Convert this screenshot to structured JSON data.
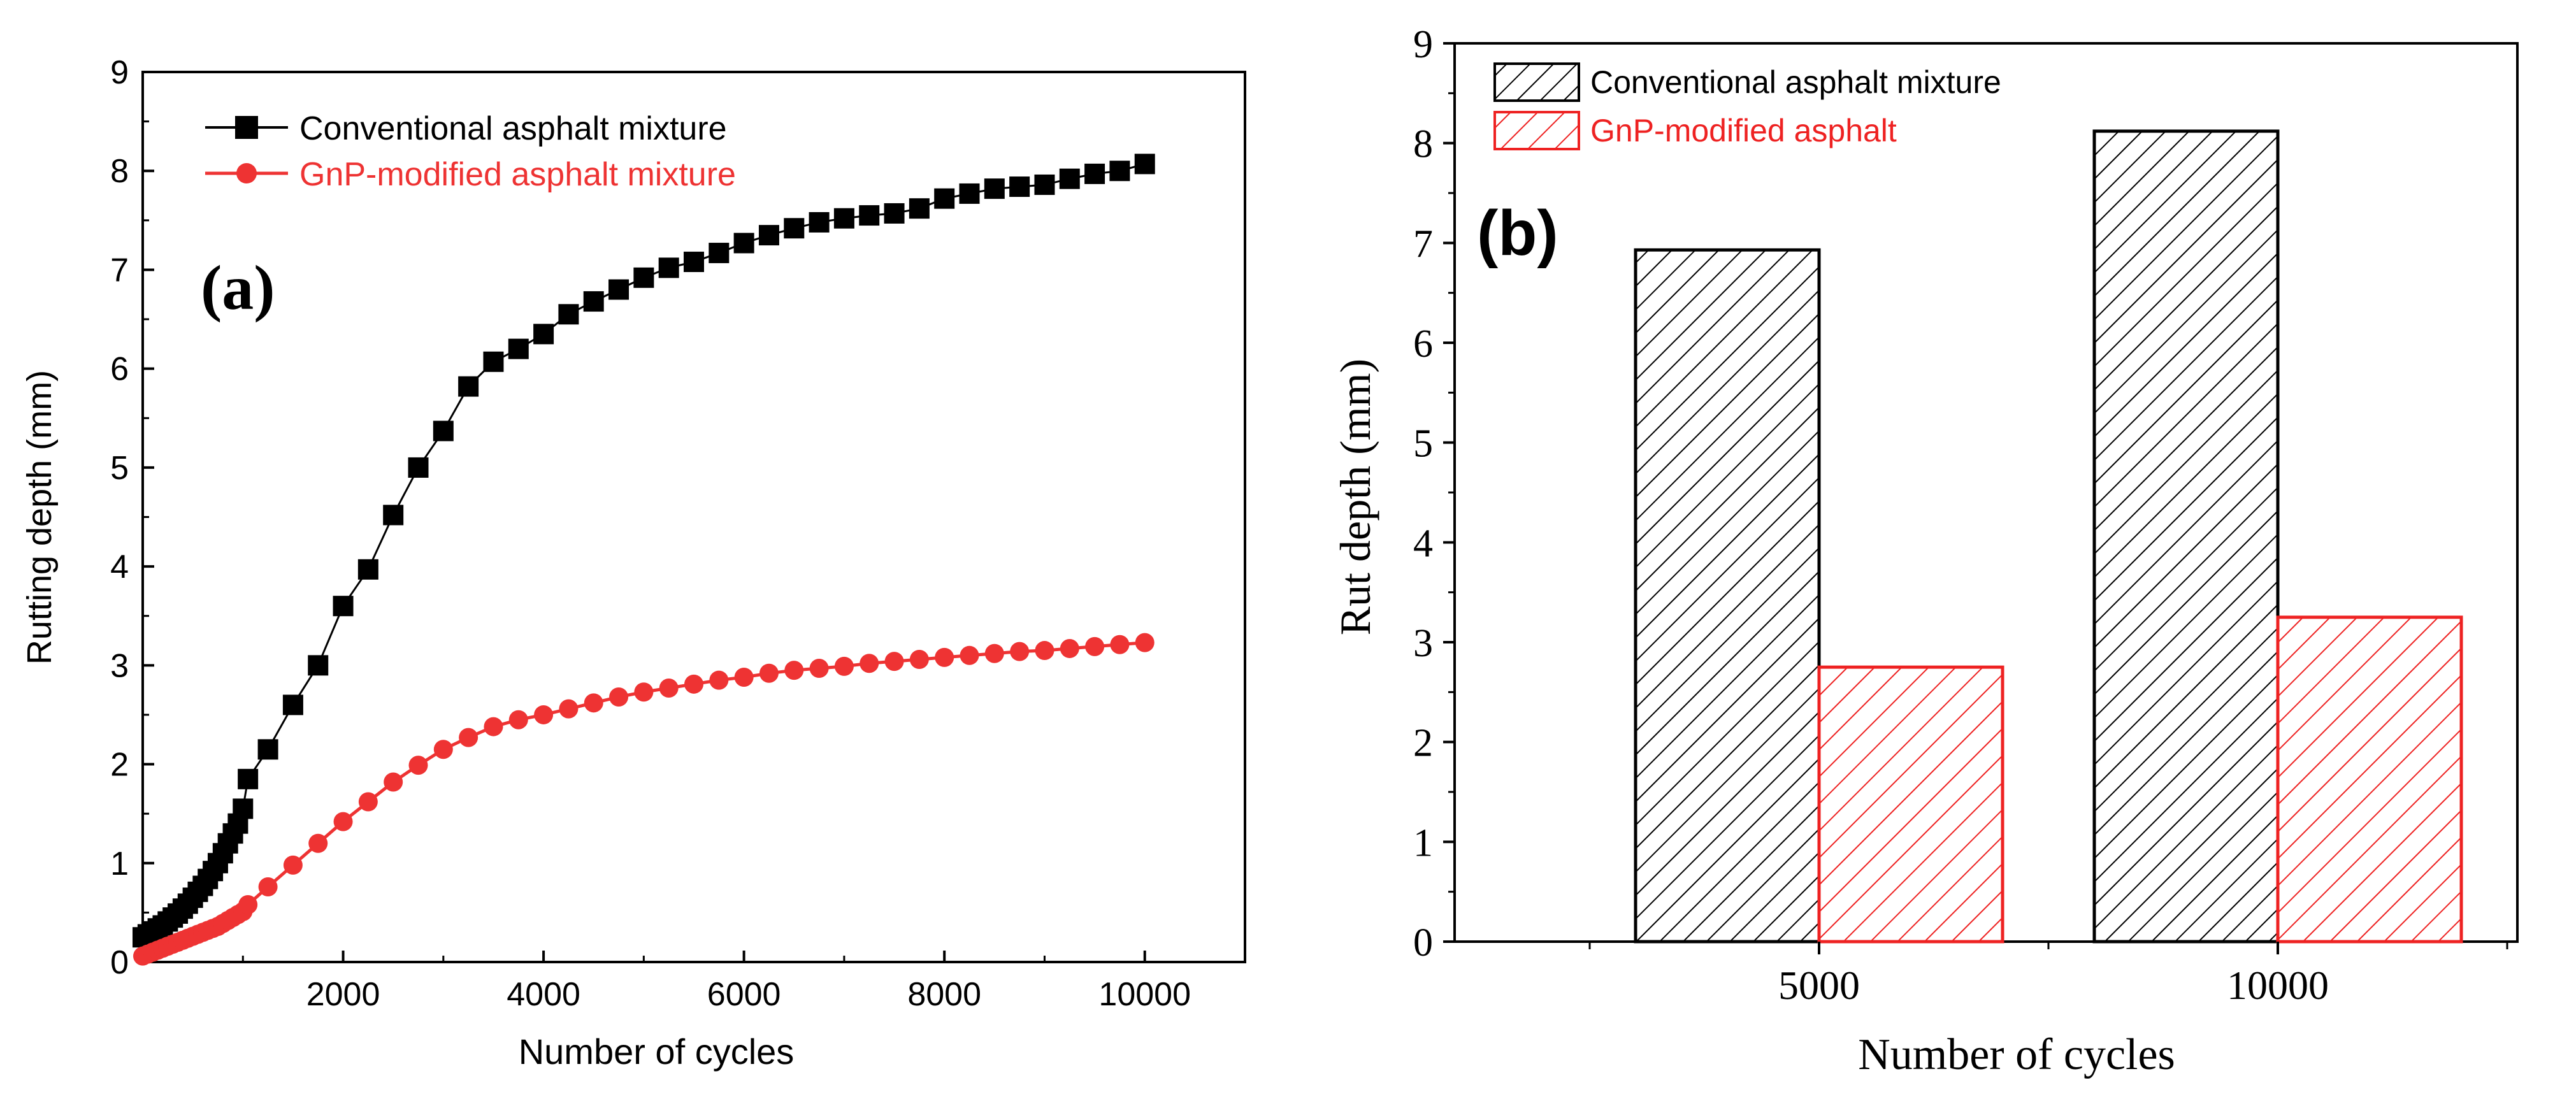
{
  "chart_data": [
    {
      "type": "line",
      "panel_label": "(a)",
      "xlabel": "Number of cycles",
      "ylabel": "Rutting depth (mm)",
      "xlim": [
        0,
        11000
      ],
      "ylim": [
        0,
        9
      ],
      "xticks": [
        2000,
        4000,
        6000,
        8000,
        10000
      ],
      "xtick_labels": [
        "2000",
        "4000",
        "6000",
        "8000",
        "10000"
      ],
      "yticks": [
        0,
        1,
        2,
        3,
        4,
        5,
        6,
        7,
        8,
        9
      ],
      "ytick_labels": [
        "0",
        "1",
        "2",
        "3",
        "4",
        "5",
        "6",
        "7",
        "8",
        "9"
      ],
      "legend_position": "top-left",
      "grid": false,
      "series": [
        {
          "name": "Conventional asphalt mixture",
          "color": "#000000",
          "marker": "square",
          "x": [
            0,
            50,
            100,
            150,
            200,
            250,
            300,
            350,
            400,
            450,
            500,
            550,
            600,
            650,
            700,
            750,
            800,
            850,
            900,
            950,
            1000,
            1050,
            1250,
            1500,
            1750,
            2000,
            2250,
            2500,
            2750,
            3000,
            3250,
            3500,
            3750,
            4000,
            4250,
            4500,
            4750,
            5000,
            5250,
            5500,
            5750,
            6000,
            6250,
            6500,
            6750,
            7000,
            7250,
            7500,
            7750,
            8000,
            8250,
            8500,
            8750,
            9000,
            9250,
            9500,
            9750,
            10000
          ],
          "values": [
            0.25,
            0.28,
            0.31,
            0.34,
            0.37,
            0.41,
            0.45,
            0.49,
            0.54,
            0.59,
            0.65,
            0.71,
            0.77,
            0.84,
            0.92,
            1.0,
            1.1,
            1.2,
            1.3,
            1.4,
            1.55,
            1.85,
            2.15,
            2.6,
            3.0,
            3.6,
            3.97,
            4.52,
            5.0,
            5.37,
            5.82,
            6.07,
            6.2,
            6.35,
            6.55,
            6.68,
            6.8,
            6.92,
            7.02,
            7.08,
            7.17,
            7.27,
            7.35,
            7.42,
            7.48,
            7.52,
            7.55,
            7.57,
            7.62,
            7.72,
            7.77,
            7.82,
            7.84,
            7.86,
            7.92,
            7.97,
            8.0,
            8.07
          ]
        },
        {
          "name": "GnP-modified asphalt mixture",
          "color": "#ee3333",
          "marker": "circle",
          "x": [
            0,
            50,
            100,
            150,
            200,
            250,
            300,
            350,
            400,
            450,
            500,
            550,
            600,
            650,
            700,
            750,
            800,
            850,
            900,
            950,
            1000,
            1050,
            1250,
            1500,
            1750,
            2000,
            2250,
            2500,
            2750,
            3000,
            3250,
            3500,
            3750,
            4000,
            4250,
            4500,
            4750,
            5000,
            5250,
            5500,
            5750,
            6000,
            6250,
            6500,
            6750,
            7000,
            7250,
            7500,
            7750,
            8000,
            8250,
            8500,
            8750,
            9000,
            9250,
            9500,
            9750,
            10000
          ],
          "values": [
            0.06,
            0.08,
            0.1,
            0.12,
            0.14,
            0.16,
            0.18,
            0.2,
            0.22,
            0.24,
            0.26,
            0.28,
            0.3,
            0.32,
            0.34,
            0.36,
            0.39,
            0.42,
            0.45,
            0.48,
            0.51,
            0.58,
            0.76,
            0.98,
            1.2,
            1.42,
            1.62,
            1.82,
            1.99,
            2.15,
            2.27,
            2.38,
            2.45,
            2.5,
            2.56,
            2.62,
            2.68,
            2.73,
            2.77,
            2.81,
            2.85,
            2.88,
            2.92,
            2.95,
            2.97,
            2.99,
            3.02,
            3.04,
            3.06,
            3.08,
            3.1,
            3.12,
            3.14,
            3.15,
            3.17,
            3.19,
            3.21,
            3.23
          ]
        }
      ]
    },
    {
      "type": "bar",
      "panel_label": "(b)",
      "xlabel": "Number of cycles",
      "ylabel": "Rut depth (mm)",
      "categories": [
        "5000",
        "10000"
      ],
      "ylim": [
        0,
        9
      ],
      "yticks": [
        0,
        1,
        2,
        3,
        4,
        5,
        6,
        7,
        8,
        9
      ],
      "ytick_labels": [
        "0",
        "1",
        "2",
        "3",
        "4",
        "5",
        "6",
        "7",
        "8",
        "9"
      ],
      "legend_position": "top-left",
      "grid": false,
      "series": [
        {
          "name": "Conventional asphalt mixture",
          "color": "#000000",
          "pattern": "hatch",
          "values": [
            6.93,
            8.12
          ]
        },
        {
          "name": "GnP-modified asphalt",
          "color": "#ee2222",
          "pattern": "hatch",
          "values": [
            2.75,
            3.25
          ]
        }
      ]
    }
  ]
}
